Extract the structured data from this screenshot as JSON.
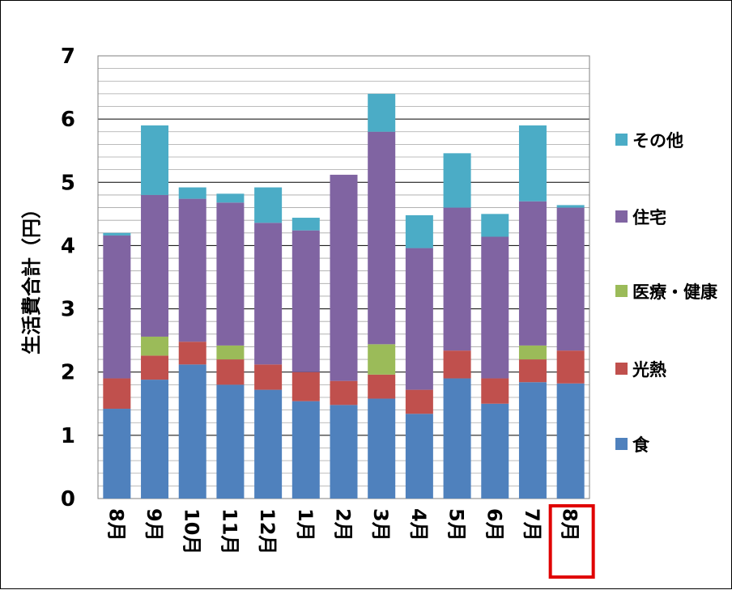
{
  "chart_data": {
    "type": "bar",
    "stacked": true,
    "ylabel": "生活費合計（円）",
    "xlabel": "",
    "title": "",
    "ylim": [
      0,
      7
    ],
    "yticks": [
      "0",
      "1",
      "2",
      "3",
      "4",
      "5",
      "6",
      "7"
    ],
    "grid": true,
    "legend_position": "right",
    "categories": [
      "8月",
      "9月",
      "10月",
      "11月",
      "12月",
      "1月",
      "2月",
      "3月",
      "4月",
      "5月",
      "6月",
      "7月",
      "8月"
    ],
    "highlight_category_index": 12,
    "highlight_color": "#e00000",
    "series": [
      {
        "name": "食",
        "color": "#4f81bd",
        "values": [
          1.42,
          1.88,
          2.12,
          1.8,
          1.72,
          1.54,
          1.48,
          1.58,
          1.34,
          1.9,
          1.5,
          1.84,
          1.82
        ]
      },
      {
        "name": "光熱",
        "color": "#c0504d",
        "values": [
          0.48,
          0.38,
          0.36,
          0.4,
          0.4,
          0.46,
          0.38,
          0.38,
          0.38,
          0.44,
          0.4,
          0.36,
          0.52
        ]
      },
      {
        "name": "医療・健康",
        "color": "#9bbb59",
        "values": [
          0,
          0.3,
          0,
          0.22,
          0,
          0,
          0,
          0.48,
          0,
          0,
          0,
          0.22,
          0
        ]
      },
      {
        "name": "住宅",
        "color": "#8064a2",
        "values": [
          2.26,
          2.24,
          2.26,
          2.26,
          2.24,
          2.24,
          3.26,
          3.36,
          2.24,
          2.26,
          2.24,
          2.28,
          2.26
        ]
      },
      {
        "name": "その他",
        "color": "#4bacc6",
        "values": [
          0.04,
          1.1,
          0.18,
          0.14,
          0.56,
          0.2,
          0,
          0.6,
          0.52,
          0.86,
          0.36,
          1.2,
          0.04
        ]
      }
    ]
  }
}
